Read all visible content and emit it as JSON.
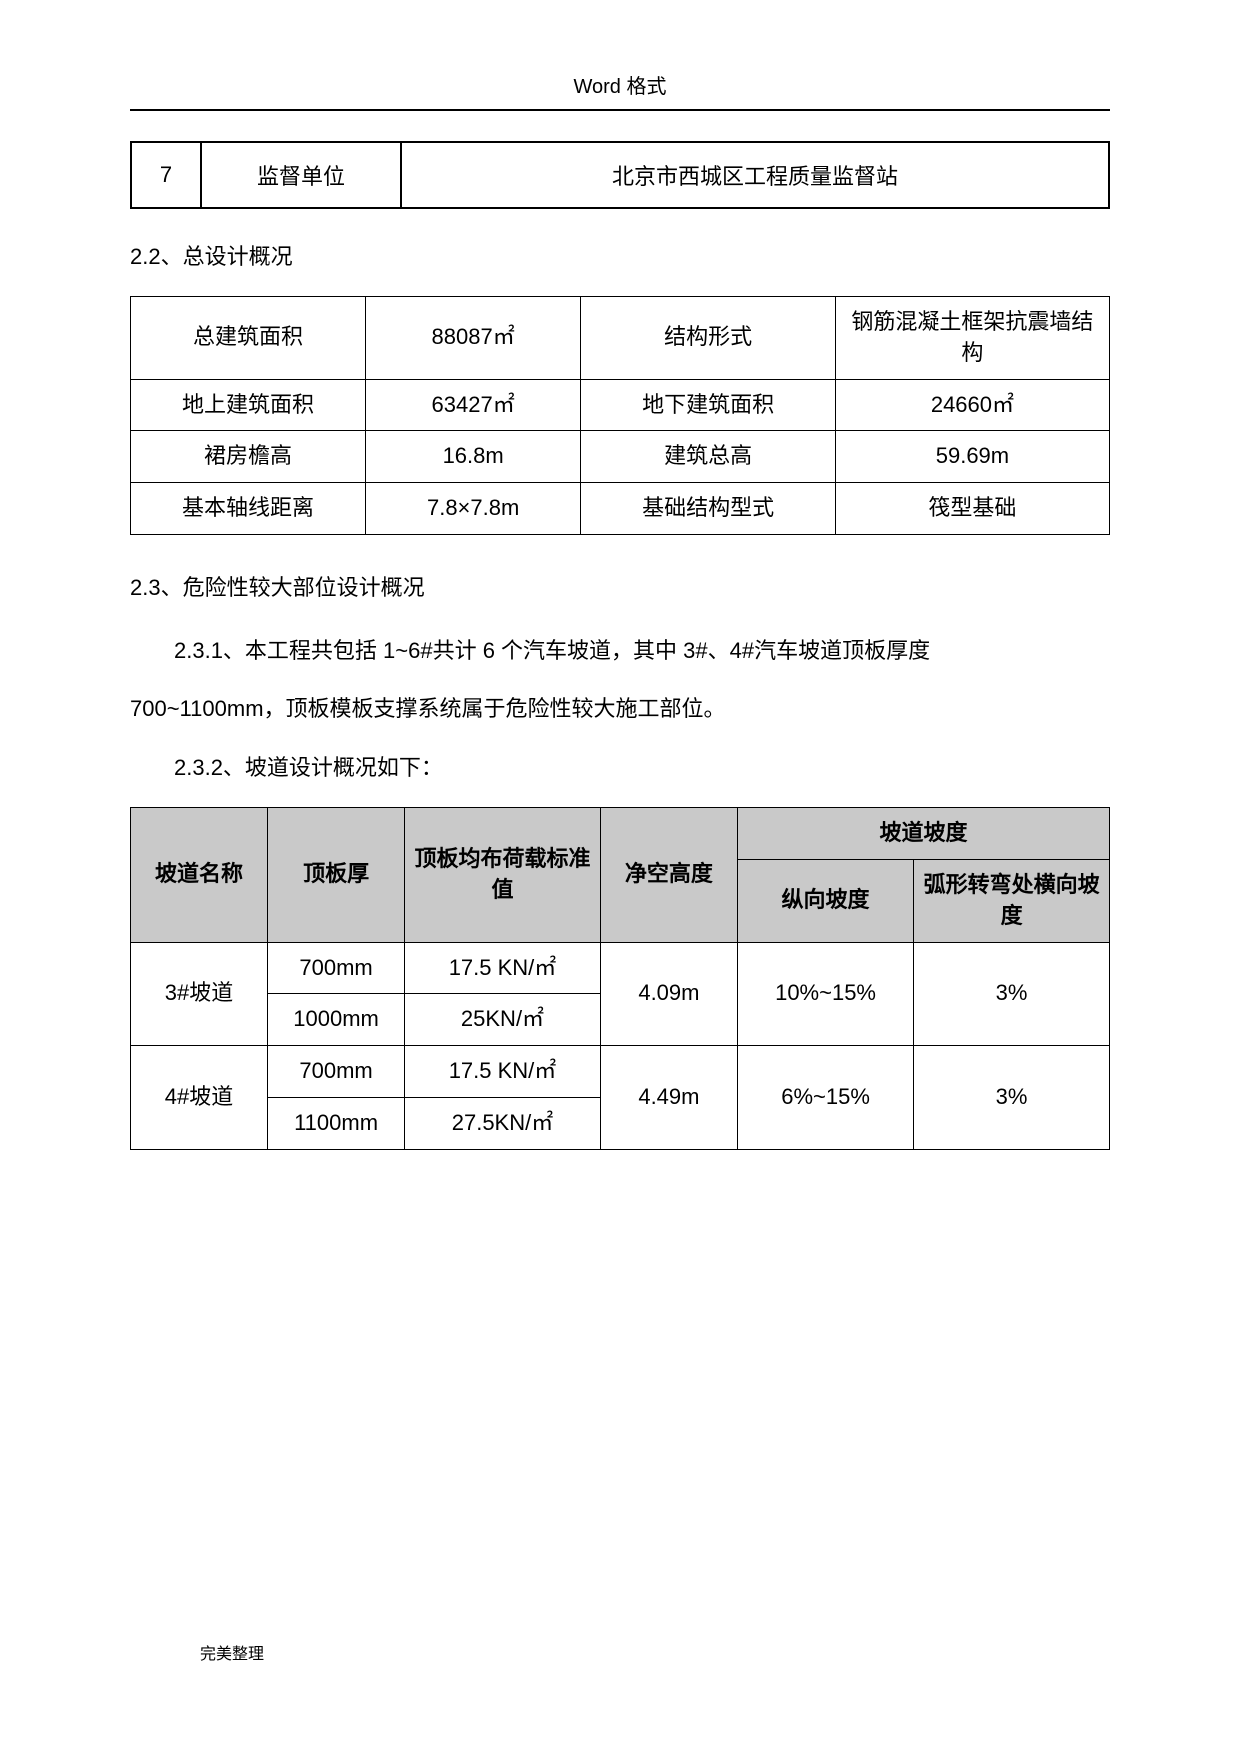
{
  "header": "Word 格式",
  "table1": {
    "num": "7",
    "label": "监督单位",
    "value": "北京市西城区工程质量监督站"
  },
  "section22": "2.2、总设计概况",
  "table2": {
    "r1": {
      "l1": "总建筑面积",
      "v1": "88087㎡",
      "l2": "结构形式",
      "v2": "钢筋混凝土框架抗震墙结构"
    },
    "r2": {
      "l1": "地上建筑面积",
      "v1": "63427㎡",
      "l2": "地下建筑面积",
      "v2": "24660㎡"
    },
    "r3": {
      "l1": "裙房檐高",
      "v1": "16.8m",
      "l2": "建筑总高",
      "v2": "59.69m"
    },
    "r4": {
      "l1": "基本轴线距离",
      "v1": "7.8×7.8m",
      "l2": "基础结构型式",
      "v2": "筏型基础"
    }
  },
  "section23": "2.3、危险性较大部位设计概况",
  "para231": "2.3.1、本工程共包括 1~6#共计 6 个汽车坡道，其中 3#、4#汽车坡道顶板厚度",
  "para231b": "700~1100mm，顶板模板支撑系统属于危险性较大施工部位。",
  "para232": "2.3.2、坡道设计概况如下：",
  "table3": {
    "head": {
      "c1": "坡道名称",
      "c2": "顶板厚",
      "c3": "顶板均布荷载标准值",
      "c4": "净空高度",
      "slope": "坡道坡度",
      "c5": "纵向坡度",
      "c6": "弧形转弯处横向坡度"
    },
    "rows": [
      {
        "name": "3#坡道",
        "t1": "700mm",
        "l1": "17.5 KN/㎡",
        "t2": "1000mm",
        "l2": "25KN/㎡",
        "h": "4.09m",
        "s1": "10%~15%",
        "s2": "3%"
      },
      {
        "name": "4#坡道",
        "t1": "700mm",
        "l1": "17.5 KN/㎡",
        "t2": "1100mm",
        "l2": "27.5KN/㎡",
        "h": "4.49m",
        "s1": "6%~15%",
        "s2": "3%"
      }
    ]
  },
  "footer": "完美整理"
}
